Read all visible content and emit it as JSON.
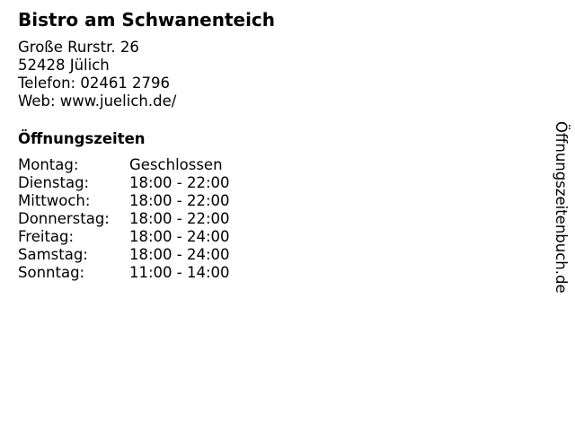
{
  "title": "Bistro am Schwanenteich",
  "address": {
    "street": "Große Rurstr. 26",
    "city": "52428 Jülich",
    "phone": "Telefon: 02461 2796",
    "web": "Web: www.juelich.de/"
  },
  "hours_heading": "Öffnungszeiten",
  "hours": [
    {
      "day": "Montag:",
      "time": "Geschlossen"
    },
    {
      "day": "Dienstag:",
      "time": "18:00 - 22:00"
    },
    {
      "day": "Mittwoch:",
      "time": "18:00 - 22:00"
    },
    {
      "day": "Donnerstag:",
      "time": "18:00 - 22:00"
    },
    {
      "day": "Freitag:",
      "time": "18:00 - 24:00"
    },
    {
      "day": "Samstag:",
      "time": "18:00 - 24:00"
    },
    {
      "day": "Sonntag:",
      "time": "11:00 - 14:00"
    }
  ],
  "side_brand": "Öffnungszeitenbuch.de"
}
